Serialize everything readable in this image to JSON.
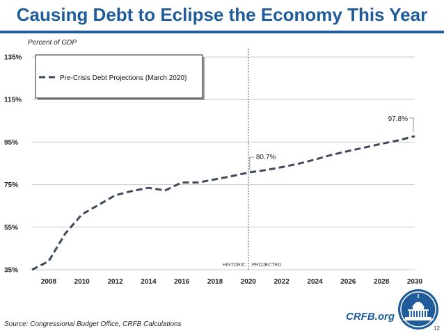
{
  "header": {
    "title": "Causing Debt to Eclipse the Economy This Year"
  },
  "chart_data": {
    "type": "line",
    "title": "Causing Debt to Eclipse the Economy This Year",
    "ylabel": "Percent of GDP",
    "xlabel": "",
    "x": [
      2007,
      2008,
      2009,
      2010,
      2011,
      2012,
      2013,
      2014,
      2015,
      2016,
      2017,
      2018,
      2019,
      2020,
      2021,
      2022,
      2023,
      2024,
      2025,
      2026,
      2027,
      2028,
      2029,
      2030
    ],
    "series": [
      {
        "name": "Pre-Crisis Debt Projections (March 2020)",
        "style": "dashed",
        "color": "#3e4a5c",
        "values": [
          35.0,
          39.0,
          52.0,
          61.0,
          65.5,
          70.0,
          72.0,
          73.5,
          72.3,
          76.0,
          76.0,
          77.5,
          79.0,
          80.7,
          81.8,
          83.2,
          84.8,
          86.8,
          89.0,
          90.8,
          92.5,
          94.2,
          95.8,
          97.8
        ]
      }
    ],
    "xlim": [
      2007,
      2030
    ],
    "ylim": [
      35,
      135
    ],
    "xticks": [
      2008,
      2010,
      2012,
      2014,
      2016,
      2018,
      2020,
      2022,
      2024,
      2026,
      2028,
      2030
    ],
    "xtick_labels": [
      "2008",
      "2010",
      "2012",
      "2014",
      "2016",
      "2018",
      "2020",
      "2022",
      "2024",
      "2026",
      "2028",
      "2030"
    ],
    "yticks": [
      35,
      55,
      75,
      95,
      115,
      135
    ],
    "ytick_labels": [
      "35%",
      "55%",
      "75%",
      "95%",
      "115%",
      "135%"
    ],
    "grid": true,
    "legend": "top-left",
    "divider": {
      "x": 2020,
      "left_label": "HISTORIC",
      "right_label": "PROJECTED"
    },
    "annotations": [
      {
        "x": 2020,
        "y": 80.7,
        "text": "80.7%"
      },
      {
        "x": 2030,
        "y": 97.8,
        "text": "97.8%"
      }
    ]
  },
  "footer": {
    "source": "Source: Congressional Budget Office, CRFB Calculations",
    "brand": "CRFB.org",
    "page_number": "12"
  },
  "colors": {
    "title": "#1f5c99",
    "line": "#3e4a5c",
    "grid": "#c8c8c8",
    "logo": "#1f5c99"
  }
}
